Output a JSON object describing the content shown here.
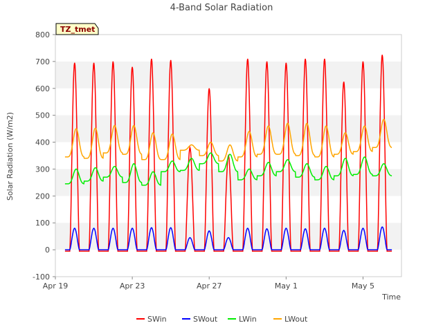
{
  "chart_data": {
    "type": "line",
    "title": "4-Band Solar Radiation",
    "xlabel": "Time",
    "ylabel": "Solar Radiation (W/m2)",
    "ylim": [
      -100,
      800
    ],
    "yticks": [
      -100,
      0,
      100,
      200,
      300,
      400,
      500,
      600,
      700,
      800
    ],
    "xlim": [
      0,
      18
    ],
    "xticks": [
      {
        "day": 0,
        "label": "Apr 19"
      },
      {
        "day": 4,
        "label": "Apr 23"
      },
      {
        "day": 8,
        "label": "Apr 27"
      },
      {
        "day": 12,
        "label": "May 1"
      },
      {
        "day": 16,
        "label": "May 5"
      }
    ],
    "grid": "horizontal bands",
    "station_tag": "TZ_tmet",
    "legend_position": "bottom",
    "series": [
      {
        "name": "SWin",
        "color": "#ff0000",
        "kind": "diurnal",
        "baseline": -5,
        "daily_peak": [
          695,
          695,
          700,
          680,
          710,
          705,
          380,
          600,
          350,
          710,
          700,
          695,
          710,
          710,
          625,
          700,
          725
        ]
      },
      {
        "name": "SWout",
        "color": "#0000ff",
        "kind": "diurnal",
        "baseline": 0,
        "daily_peak": [
          80,
          80,
          80,
          80,
          82,
          82,
          45,
          70,
          45,
          80,
          78,
          80,
          78,
          80,
          72,
          80,
          85
        ]
      },
      {
        "name": "LWin",
        "color": "#00ee00",
        "kind": "daily_minmax",
        "daily_max": [
          300,
          305,
          310,
          320,
          290,
          330,
          340,
          360,
          355,
          300,
          325,
          335,
          320,
          310,
          340,
          345,
          320
        ],
        "daily_min": [
          245,
          255,
          270,
          250,
          240,
          290,
          295,
          320,
          290,
          260,
          275,
          290,
          270,
          260,
          275,
          280,
          275
        ]
      },
      {
        "name": "LWout",
        "color": "#ffa500",
        "kind": "daily_minmax",
        "daily_max": [
          450,
          452,
          462,
          462,
          435,
          430,
          390,
          400,
          390,
          440,
          460,
          470,
          470,
          460,
          435,
          460,
          485
        ],
        "daily_min": [
          345,
          340,
          360,
          355,
          335,
          335,
          370,
          350,
          330,
          345,
          355,
          355,
          350,
          345,
          355,
          365,
          380
        ]
      }
    ]
  }
}
